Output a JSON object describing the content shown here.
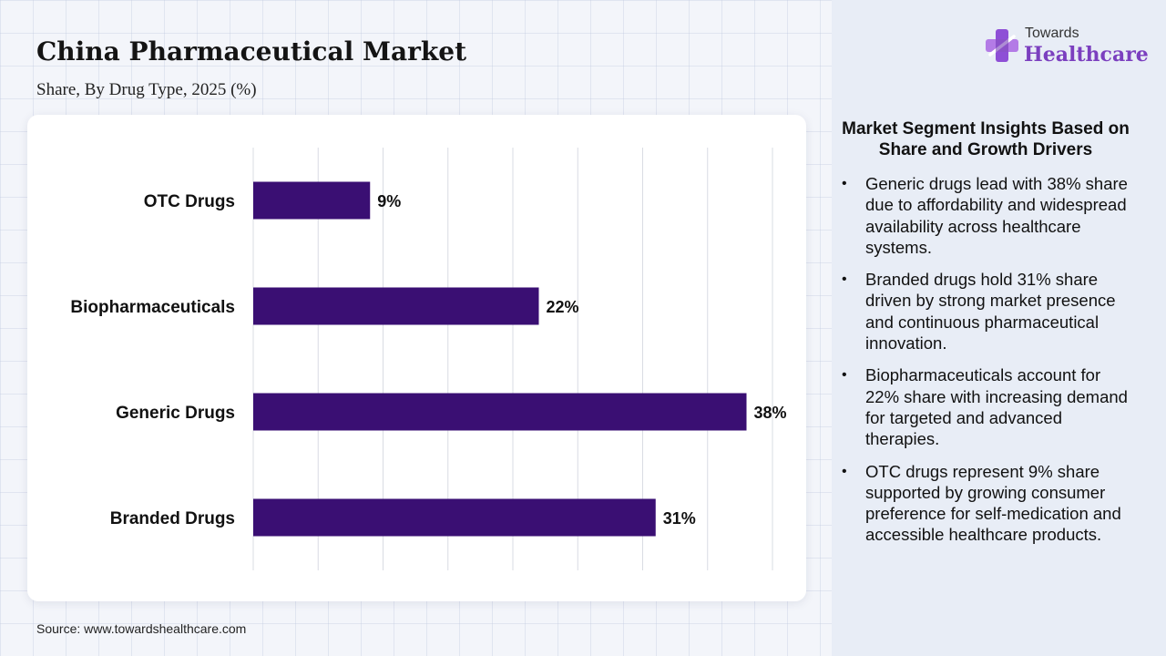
{
  "header": {
    "title": "China Pharmaceutical Market",
    "subtitle": "Share, By Drug Type, 2025 (%)"
  },
  "chart_data": {
    "type": "bar",
    "orientation": "horizontal",
    "categories": [
      "OTC Drugs",
      "Biopharmaceuticals",
      "Generic Drugs",
      "Branded Drugs"
    ],
    "values": [
      9,
      22,
      38,
      31
    ],
    "value_labels": [
      "9%",
      "22%",
      "38%",
      "31%"
    ],
    "xlim": [
      0,
      40
    ],
    "grid": true,
    "bar_color": "#3a0f73"
  },
  "insights": {
    "title": "Market Segment Insights Based on Share and Growth Drivers",
    "items": [
      "Generic drugs lead with 38% share due to affordability and widespread availability across healthcare systems.",
      "Branded drugs hold 31% share driven by strong market presence and continuous pharmaceutical innovation.",
      "Biopharmaceuticals account for 22% share with increasing demand for targeted and advanced therapies.",
      "OTC drugs represent 9% share supported by growing consumer preference for self-medication and accessible healthcare products."
    ]
  },
  "logo": {
    "top": "Towards",
    "main": "Healthcare",
    "icon": "plus-cross-icon",
    "color": "#7b3fbf"
  },
  "footer": {
    "source": "Source: www.towardshealthcare.com"
  }
}
